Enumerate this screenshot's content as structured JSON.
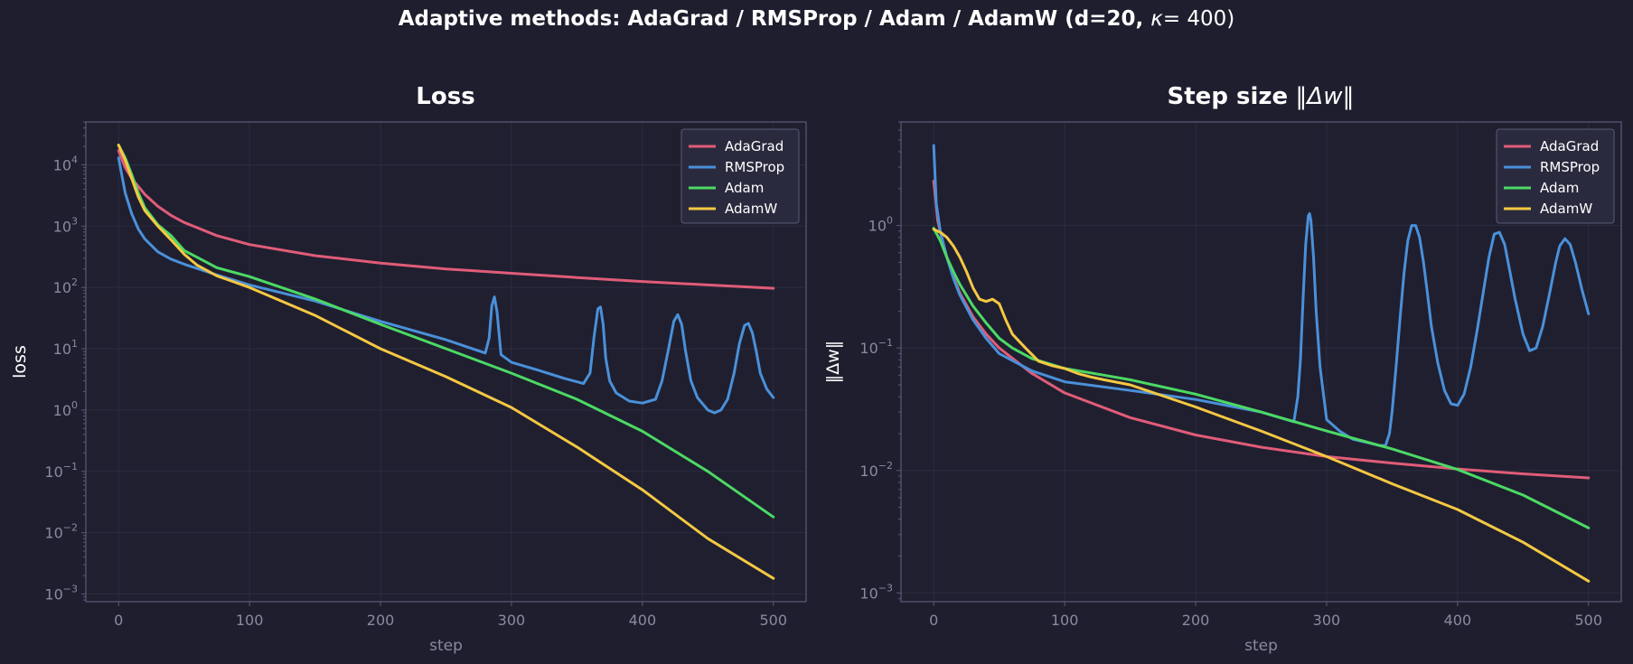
{
  "figure": {
    "title": "Adaptive methods: AdaGrad / RMSProp / Adam / AdamW  (d=20,",
    "title_kappa": "κ",
    "title_kappa_eq": "= 400)",
    "background": "#1e1e2e",
    "axes_background": "#1f1f30",
    "spine_color": "#5a5a7a",
    "grid_color": "#2c2c40",
    "tick_label_color": "#8a8aa0",
    "label_color": "#ffffff"
  },
  "chart_data": [
    {
      "type": "line",
      "title": "Loss",
      "xlabel": "step",
      "ylabel": "loss",
      "yscale": "log",
      "xlim": [
        -25,
        525
      ],
      "ylim": [
        0.00075,
        50000
      ],
      "xticks": [
        "0",
        "100",
        "200",
        "300",
        "400",
        "500"
      ],
      "yticks": [
        {
          "base": "10",
          "exp": "−3",
          "value": 0.001
        },
        {
          "base": "10",
          "exp": "−2",
          "value": 0.01
        },
        {
          "base": "10",
          "exp": "−1",
          "value": 0.1
        },
        {
          "base": "10",
          "exp": "0",
          "value": 1
        },
        {
          "base": "10",
          "exp": "1",
          "value": 10
        },
        {
          "base": "10",
          "exp": "2",
          "value": 100
        },
        {
          "base": "10",
          "exp": "3",
          "value": 1000
        },
        {
          "base": "10",
          "exp": "4",
          "value": 10000
        }
      ],
      "grid": true,
      "legend": "upper right",
      "series": [
        {
          "name": "AdaGrad",
          "color": "#e05c78",
          "x": [
            0,
            5,
            10,
            20,
            30,
            40,
            50,
            75,
            100,
            150,
            200,
            250,
            300,
            350,
            400,
            450,
            500
          ],
          "y": [
            17000,
            9000,
            6000,
            3300,
            2100,
            1500,
            1150,
            700,
            500,
            330,
            250,
            200,
            170,
            145,
            125,
            110,
            97
          ]
        },
        {
          "name": "RMSProp",
          "color": "#4a90d9",
          "x": [
            0,
            5,
            10,
            15,
            20,
            30,
            40,
            50,
            75,
            100,
            150,
            200,
            250,
            280,
            283,
            285,
            287,
            289,
            292,
            300,
            320,
            340,
            355,
            360,
            363,
            366,
            368,
            370,
            372,
            375,
            380,
            390,
            400,
            410,
            415,
            420,
            424,
            427,
            430,
            433,
            437,
            442,
            450,
            455,
            460,
            465,
            470,
            474,
            478,
            481,
            484,
            487,
            490,
            495,
            500
          ],
          "y": [
            13000,
            3500,
            1600,
            900,
            620,
            380,
            290,
            240,
            160,
            110,
            60,
            28,
            14,
            8.5,
            15,
            50,
            70,
            40,
            8,
            6,
            4.5,
            3.3,
            2.7,
            4,
            15,
            45,
            48,
            25,
            7,
            3,
            1.9,
            1.4,
            1.3,
            1.5,
            3,
            10,
            28,
            36,
            25,
            9,
            3,
            1.6,
            1.0,
            0.9,
            1.0,
            1.5,
            4,
            12,
            24,
            26,
            18,
            9,
            4,
            2.2,
            1.6
          ]
        },
        {
          "name": "Adam",
          "color": "#4cd964",
          "x": [
            0,
            5,
            10,
            15,
            20,
            30,
            40,
            50,
            60,
            75,
            100,
            150,
            200,
            250,
            300,
            350,
            400,
            450,
            500
          ],
          "y": [
            21000,
            13000,
            7000,
            3500,
            2000,
            1050,
            700,
            400,
            310,
            210,
            150,
            65,
            25,
            10,
            4,
            1.5,
            0.45,
            0.1,
            0.018
          ]
        },
        {
          "name": "AdamW",
          "color": "#f5c842",
          "x": [
            0,
            5,
            10,
            15,
            20,
            30,
            40,
            50,
            60,
            75,
            100,
            150,
            200,
            250,
            300,
            350,
            400,
            450,
            500
          ],
          "y": [
            21000,
            12000,
            6000,
            3000,
            1800,
            1000,
            600,
            350,
            230,
            155,
            100,
            35,
            10,
            3.5,
            1.1,
            0.25,
            0.05,
            0.008,
            0.0018
          ]
        }
      ]
    },
    {
      "type": "line",
      "title": "Step size",
      "title_math": "‖Δw‖",
      "xlabel": "step",
      "ylabel": "‖Δw‖",
      "yscale": "log",
      "xlim": [
        -25,
        525
      ],
      "ylim": [
        0.00085,
        7
      ],
      "xticks": [
        "0",
        "100",
        "200",
        "300",
        "400",
        "500"
      ],
      "yticks": [
        {
          "base": "10",
          "exp": "−3",
          "value": 0.001
        },
        {
          "base": "10",
          "exp": "−2",
          "value": 0.01
        },
        {
          "base": "10",
          "exp": "−1",
          "value": 0.1
        },
        {
          "base": "10",
          "exp": "0",
          "value": 1
        }
      ],
      "grid": true,
      "legend": "upper right",
      "series": [
        {
          "name": "AdaGrad",
          "color": "#e05c78",
          "x": [
            0,
            3,
            6,
            10,
            15,
            20,
            30,
            40,
            50,
            75,
            100,
            150,
            200,
            250,
            300,
            350,
            400,
            450,
            500
          ],
          "y": [
            2.3,
            1.1,
            0.8,
            0.55,
            0.38,
            0.28,
            0.18,
            0.13,
            0.1,
            0.062,
            0.043,
            0.027,
            0.0195,
            0.0155,
            0.013,
            0.0115,
            0.0103,
            0.0094,
            0.0087
          ]
        },
        {
          "name": "RMSProp",
          "color": "#4a90d9",
          "x": [
            0,
            2,
            5,
            10,
            15,
            20,
            30,
            40,
            50,
            75,
            100,
            150,
            200,
            250,
            275,
            278,
            280,
            282,
            284,
            286,
            287,
            288,
            290,
            292,
            295,
            300,
            310,
            320,
            330,
            340,
            345,
            348,
            350,
            353,
            356,
            359,
            362,
            365,
            368,
            371,
            374,
            377,
            380,
            385,
            390,
            395,
            400,
            405,
            410,
            415,
            420,
            424,
            428,
            432,
            436,
            440,
            444,
            450,
            455,
            460,
            465,
            470,
            475,
            478,
            482,
            486,
            490,
            495,
            500
          ],
          "y": [
            4.5,
            1.5,
            0.9,
            0.55,
            0.37,
            0.27,
            0.17,
            0.12,
            0.09,
            0.065,
            0.053,
            0.045,
            0.038,
            0.03,
            0.025,
            0.04,
            0.08,
            0.25,
            0.7,
            1.2,
            1.25,
            1.1,
            0.55,
            0.2,
            0.07,
            0.026,
            0.021,
            0.018,
            0.017,
            0.016,
            0.016,
            0.02,
            0.03,
            0.07,
            0.17,
            0.4,
            0.75,
            1.0,
            1.0,
            0.8,
            0.5,
            0.28,
            0.15,
            0.075,
            0.045,
            0.035,
            0.034,
            0.042,
            0.07,
            0.14,
            0.3,
            0.55,
            0.85,
            0.88,
            0.7,
            0.42,
            0.25,
            0.13,
            0.095,
            0.1,
            0.15,
            0.27,
            0.5,
            0.68,
            0.78,
            0.7,
            0.5,
            0.3,
            0.19
          ]
        },
        {
          "name": "Adam",
          "color": "#4cd964",
          "x": [
            0,
            5,
            10,
            15,
            20,
            30,
            40,
            50,
            60,
            75,
            100,
            130,
            150,
            200,
            250,
            300,
            350,
            400,
            450,
            500
          ],
          "y": [
            0.95,
            0.75,
            0.55,
            0.42,
            0.33,
            0.22,
            0.16,
            0.12,
            0.1,
            0.082,
            0.068,
            0.06,
            0.055,
            0.042,
            0.03,
            0.021,
            0.015,
            0.0102,
            0.0063,
            0.0034
          ]
        },
        {
          "name": "AdamW",
          "color": "#f5c842",
          "x": [
            0,
            5,
            10,
            15,
            20,
            25,
            30,
            35,
            40,
            45,
            50,
            55,
            60,
            70,
            80,
            90,
            100,
            110,
            120,
            130,
            150,
            200,
            250,
            300,
            350,
            400,
            450,
            500
          ],
          "y": [
            0.93,
            0.88,
            0.8,
            0.68,
            0.55,
            0.42,
            0.31,
            0.25,
            0.24,
            0.25,
            0.23,
            0.17,
            0.13,
            0.1,
            0.078,
            0.072,
            0.068,
            0.062,
            0.058,
            0.055,
            0.05,
            0.033,
            0.021,
            0.013,
            0.0078,
            0.0048,
            0.0026,
            0.00125
          ]
        }
      ]
    }
  ]
}
